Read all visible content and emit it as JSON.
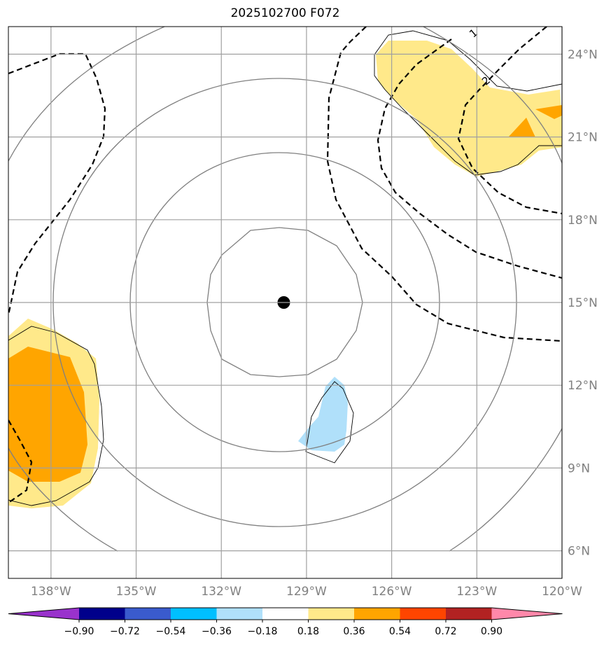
{
  "chart_data": {
    "type": "contour-map",
    "title": "2025102700 F072",
    "lon_range": [
      -139.5,
      -120.0
    ],
    "lat_range": [
      5.0,
      25.0
    ],
    "lon_ticks": [
      {
        "value": -138,
        "label": "138°W"
      },
      {
        "value": -135,
        "label": "135°W"
      },
      {
        "value": -132,
        "label": "132°W"
      },
      {
        "value": -129,
        "label": "129°W"
      },
      {
        "value": -126,
        "label": "126°W"
      },
      {
        "value": -123,
        "label": "123°W"
      },
      {
        "value": -120,
        "label": "120°W"
      }
    ],
    "lat_ticks": [
      {
        "value": 6,
        "label": "6°N"
      },
      {
        "value": 9,
        "label": "9°N"
      },
      {
        "value": 12,
        "label": "12°N"
      },
      {
        "value": 15,
        "label": "15°N"
      },
      {
        "value": 18,
        "label": "18°N"
      },
      {
        "value": 21,
        "label": "21°N"
      },
      {
        "value": 24,
        "label": "24°N"
      }
    ],
    "storm_center": {
      "lon": -129.8,
      "lat": 15.0
    },
    "dashed_contour_labels": [
      "1",
      "2"
    ],
    "colorbar": {
      "levels": [
        "−0.90",
        "−0.72",
        "−0.54",
        "−0.36",
        "−0.18",
        "0.18",
        "0.36",
        "0.54",
        "0.72",
        "0.90"
      ],
      "colors": [
        "#9932cc",
        "#00008b",
        "#3a5bcd",
        "#00bfff",
        "#b0e0fa",
        "#ffffff",
        "#ffe98a",
        "#ffa500",
        "#ff4500",
        "#b22222",
        "#ff88aa"
      ]
    }
  }
}
